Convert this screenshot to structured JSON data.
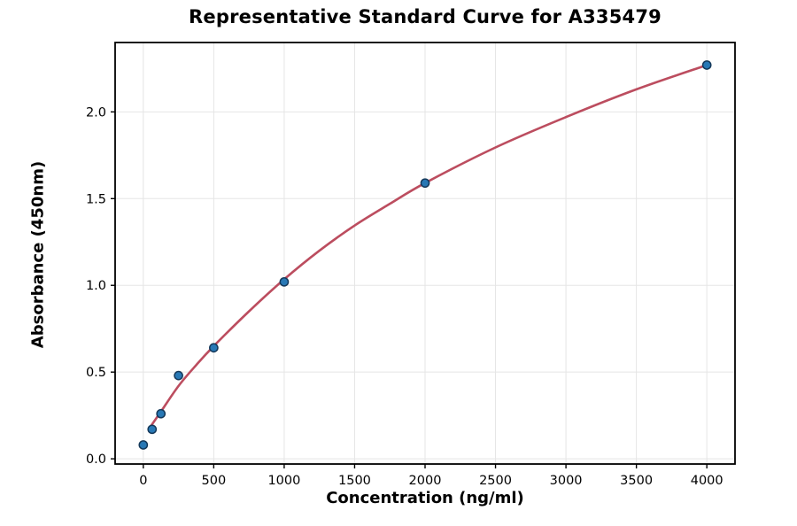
{
  "chart_data": {
    "type": "scatter",
    "title": "Representative Standard Curve for A335479",
    "xlabel": "Concentration (ng/ml)",
    "ylabel": "Absorbance (450nm)",
    "xlim": [
      -200,
      4200
    ],
    "ylim": [
      -0.03,
      2.4
    ],
    "grid": true,
    "legend": "none",
    "x_ticks": [
      {
        "value": 0,
        "label": "0"
      },
      {
        "value": 500,
        "label": "500"
      },
      {
        "value": 1000,
        "label": "1000"
      },
      {
        "value": 1500,
        "label": "1500"
      },
      {
        "value": 2000,
        "label": "2000"
      },
      {
        "value": 2500,
        "label": "2500"
      },
      {
        "value": 3000,
        "label": "3000"
      },
      {
        "value": 3500,
        "label": "3500"
      },
      {
        "value": 4000,
        "label": "4000"
      }
    ],
    "y_ticks": [
      {
        "value": 0.0,
        "label": "0.0"
      },
      {
        "value": 0.5,
        "label": "0.5"
      },
      {
        "value": 1.0,
        "label": "1.0"
      },
      {
        "value": 1.5,
        "label": "1.5"
      },
      {
        "value": 2.0,
        "label": "2.0"
      }
    ],
    "points": [
      {
        "x": 0,
        "y": 0.08
      },
      {
        "x": 62.5,
        "y": 0.17
      },
      {
        "x": 125,
        "y": 0.26
      },
      {
        "x": 250,
        "y": 0.48
      },
      {
        "x": 500,
        "y": 0.64
      },
      {
        "x": 1000,
        "y": 1.02
      },
      {
        "x": 2000,
        "y": 1.59
      },
      {
        "x": 4000,
        "y": 2.27
      }
    ],
    "fit_curve": [
      [
        55,
        0.19
      ],
      [
        125,
        0.272
      ],
      [
        250,
        0.42
      ],
      [
        375,
        0.54
      ],
      [
        500,
        0.65
      ],
      [
        750,
        0.85
      ],
      [
        1000,
        1.035
      ],
      [
        1250,
        1.2
      ],
      [
        1500,
        1.345
      ],
      [
        1750,
        1.47
      ],
      [
        2000,
        1.59
      ],
      [
        2500,
        1.795
      ],
      [
        3000,
        1.97
      ],
      [
        3500,
        2.13
      ],
      [
        4000,
        2.27
      ]
    ],
    "colors": {
      "curve": "#bc4d5f",
      "marker_fill": "#2878b5",
      "marker_edge": "#15395a",
      "grid": "#e5e5e5",
      "frame": "#000000",
      "tick_label": "#000000",
      "background": "#ffffff"
    },
    "marker_radius": 4.6
  }
}
